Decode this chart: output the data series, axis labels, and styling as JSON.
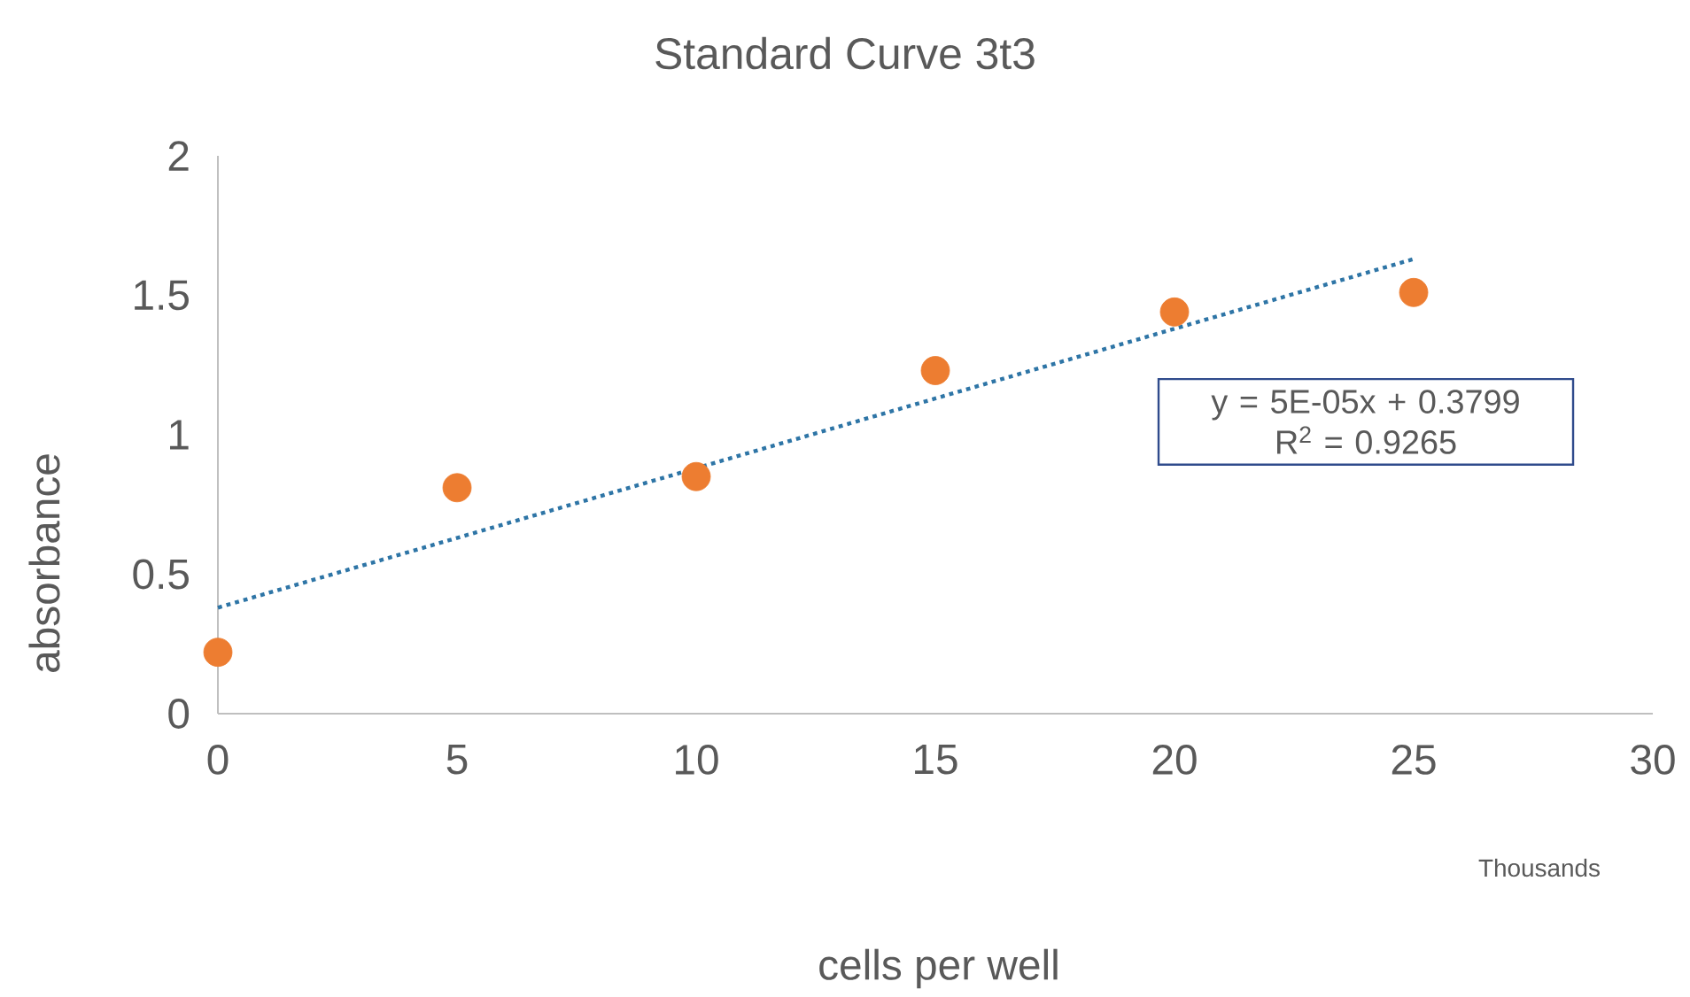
{
  "chart_data": {
    "type": "scatter",
    "title": "Standard Curve 3t3",
    "xlabel": "cells per well",
    "ylabel": "absorbance",
    "x": [
      0,
      5,
      10,
      15,
      20,
      25
    ],
    "series": [
      {
        "color": "#ed7d31",
        "values": [
          0.22,
          0.81,
          0.85,
          1.23,
          1.44,
          1.51
        ],
        "marker": "circle"
      },
      {
        "type": "line",
        "x": [
          0,
          25
        ],
        "values": [
          0.38,
          1.63
        ],
        "color": "#2e75a6",
        "line_style": "dotted",
        "marker": "none"
      }
    ],
    "xlim": [
      0,
      30
    ],
    "xticks": [
      0,
      5,
      10,
      15,
      20,
      25,
      30
    ],
    "ylim": [
      0,
      2
    ],
    "yticks": [
      0,
      0.5,
      1,
      1.5,
      2
    ],
    "annotations": [
      "y = 5E-05x + 0.3799",
      "R$^{2}$ = 0.9265",
      "Thousands"
    ]
  }
}
